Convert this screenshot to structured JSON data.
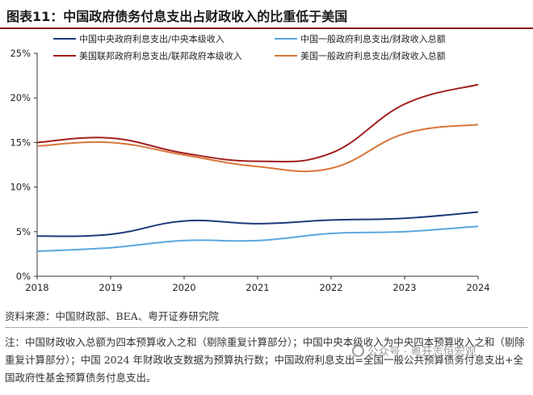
{
  "title": "图表11：中国政府债务付息支出占财政收入的比重低于美国",
  "source": "资料来源：中国财政部、BEA、粤开证券研究院",
  "note": "注：中国财政收入总额为四本预算收入之和（剔除重复计算部分）；中国中央本级收入为中央四本预算收入之和（剔除重复计算部分）；中国 2024 年财政收支数据为预算执行数；中国政府利息支出=全国一般公共预算债务付息支出+全国政府性基金预算债务付息支出。",
  "watermark": "公众号 · 粤开志恒宏观",
  "colors": {
    "cn_central": "#1f3a7a",
    "us_federal": "#a31f1f",
    "cn_general": "#5aa8e0",
    "us_general": "#d9773a",
    "title_rule": "#8a1c1c"
  },
  "chart_data": {
    "type": "line",
    "x": [
      2018,
      2019,
      2020,
      2021,
      2022,
      2023,
      2024
    ],
    "ylim": [
      0,
      25
    ],
    "yticks": [
      "0%",
      "5%",
      "10%",
      "15%",
      "20%",
      "25%"
    ],
    "xticks": [
      "2018",
      "2019",
      "2020",
      "2021",
      "2022",
      "2023",
      "2024"
    ],
    "grid": false,
    "legend": "top",
    "series": [
      {
        "name": "中国中央政府利息支出/中央本级收入",
        "color_key": "cn_central",
        "values": [
          4.5,
          4.7,
          6.2,
          5.9,
          6.3,
          6.5,
          7.2
        ]
      },
      {
        "name": "美国联邦政府利息支出/联邦政府本级收入",
        "color_key": "us_federal",
        "values": [
          15.0,
          15.5,
          13.8,
          12.9,
          13.8,
          19.3,
          21.5
        ]
      },
      {
        "name": "中国一般政府利息支出/财政收入总额",
        "color_key": "cn_general",
        "values": [
          2.8,
          3.2,
          4.0,
          4.0,
          4.8,
          5.0,
          5.6
        ]
      },
      {
        "name": "美国一般政府利息支出/财政收入总额",
        "color_key": "us_general",
        "values": [
          14.6,
          15.0,
          13.6,
          12.3,
          12.1,
          16.0,
          17.0
        ]
      }
    ]
  }
}
